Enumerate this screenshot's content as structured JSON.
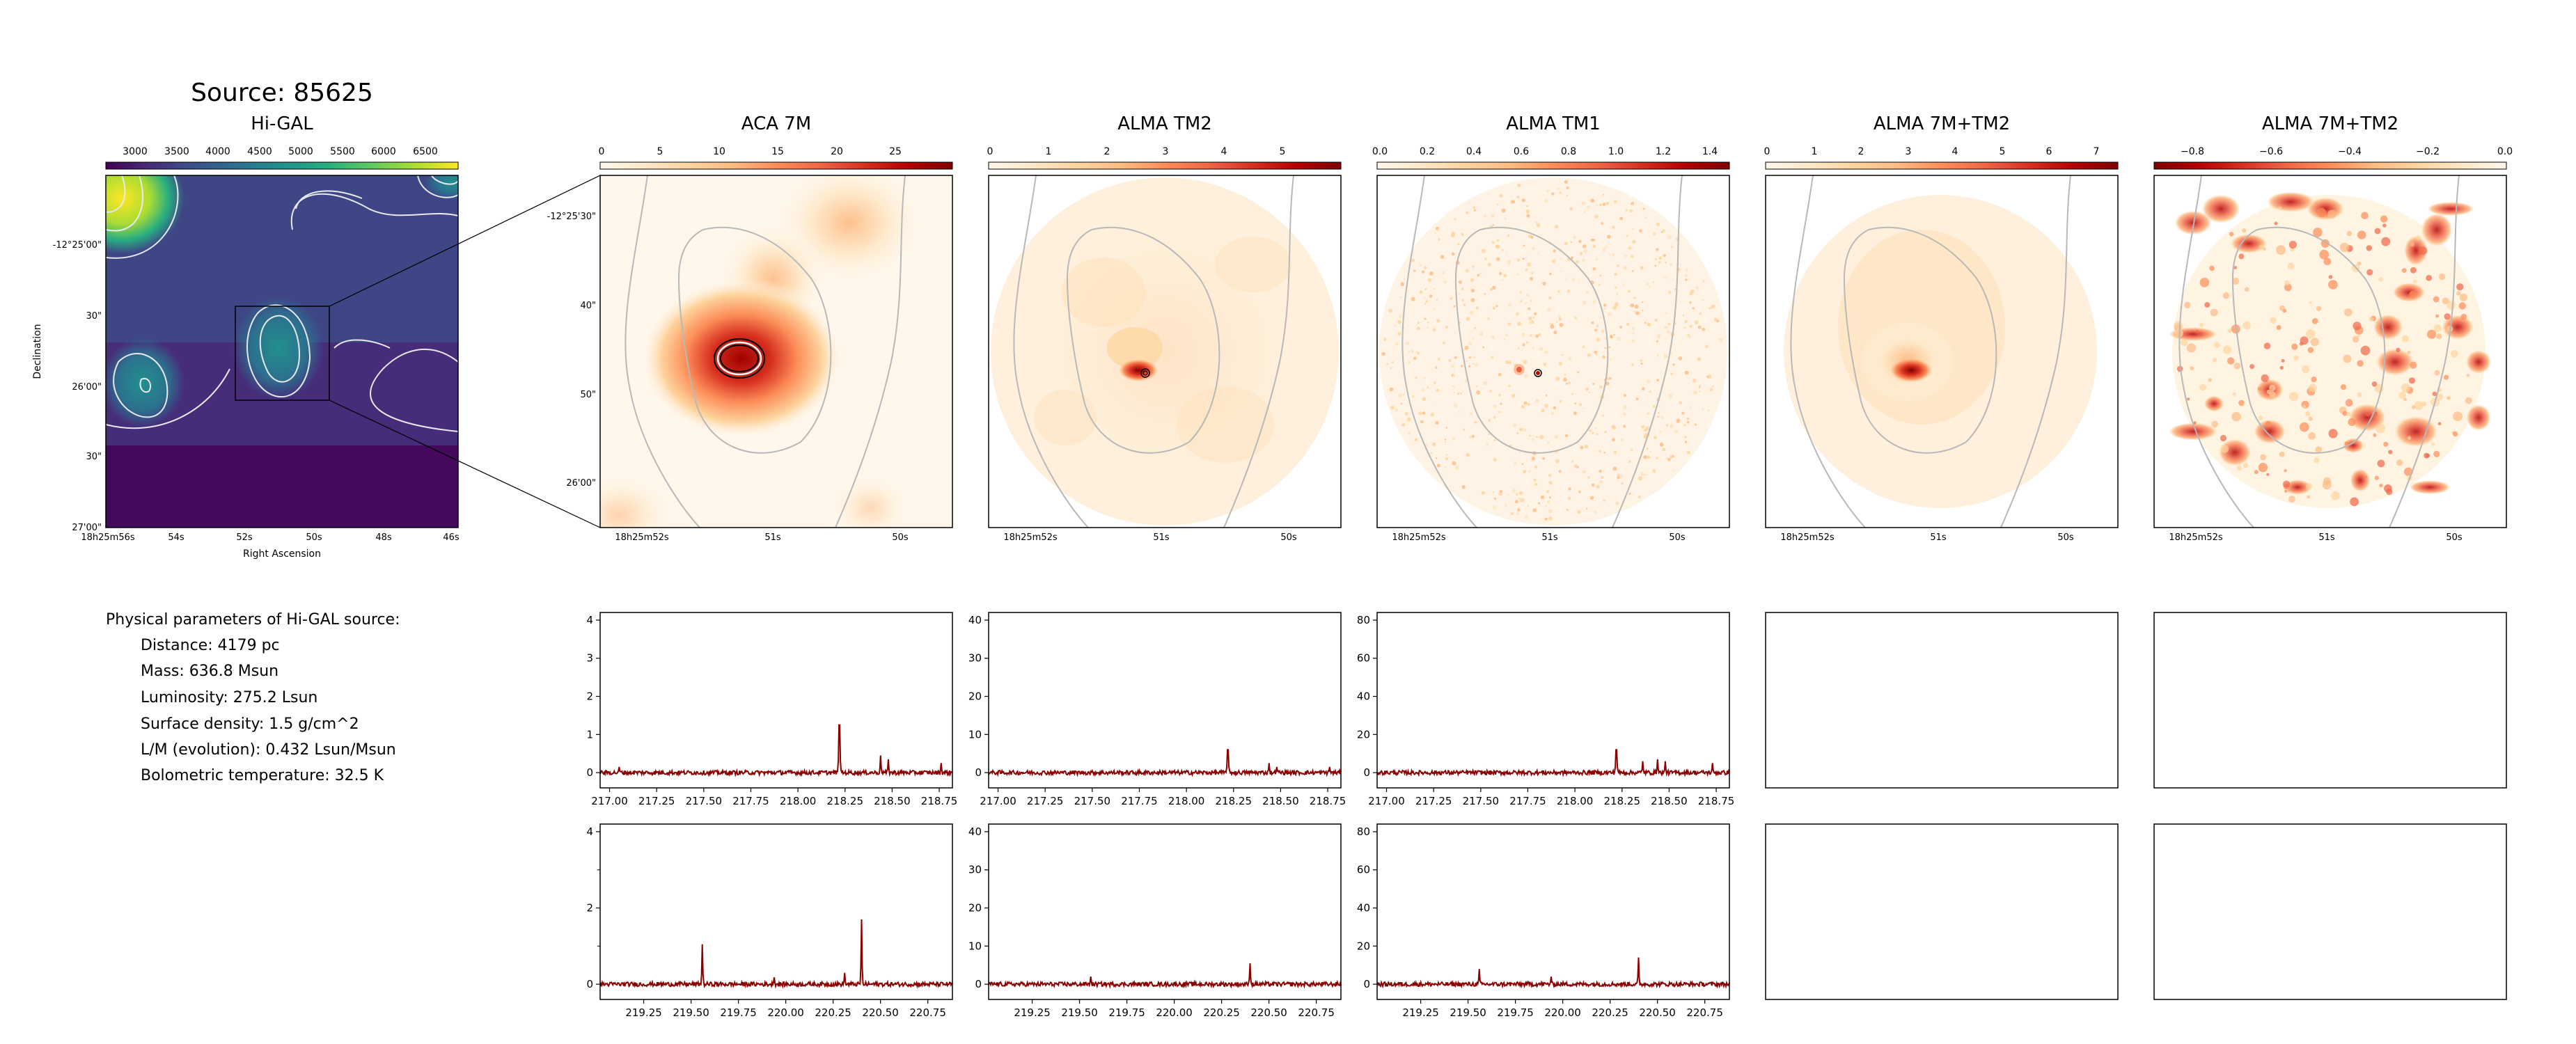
{
  "title": "Source: 85625",
  "colors": {
    "viridis": [
      "#440154",
      "#472c7a",
      "#3b518b",
      "#2c718e",
      "#21908d",
      "#27ad81",
      "#5cc863",
      "#aadc32",
      "#fde725"
    ],
    "orrd": [
      "#fff7ec",
      "#fee8c8",
      "#fdd49e",
      "#fdbb84",
      "#fc8d59",
      "#ef6548",
      "#d7301f",
      "#b30000",
      "#7f0000"
    ],
    "orrd_r": [
      "#7f0000",
      "#b30000",
      "#d7301f",
      "#ef6548",
      "#fc8d59",
      "#fdbb84",
      "#fdd49e",
      "#fee8c8",
      "#fff7ec"
    ],
    "spectrum": "#8b0000",
    "contour_hg": "#e8e8f0",
    "contour_grey": "#b8b8b8"
  },
  "panels": [
    {
      "id": "higal",
      "title": "Hi-GAL",
      "ticks": [
        "3000",
        "3500",
        "4000",
        "4500",
        "5000",
        "5500",
        "6000",
        "6500"
      ],
      "ylabel": "Declination",
      "xlabel": "Right Ascension",
      "xticklabels": [
        "18h25m56s",
        "54s",
        "52s",
        "50s",
        "48s",
        "46s"
      ],
      "yticklabels": [
        "-12°25'00\"",
        "30\"",
        "26'00\"",
        "30\"",
        "27'00\""
      ]
    },
    {
      "id": "aca7m",
      "title": "ACA 7M",
      "ticks": [
        "0",
        "5",
        "10",
        "15",
        "20",
        "25"
      ],
      "xticklabels": [
        "18h25m52s",
        "51s",
        "50s"
      ],
      "yticklabels": [
        "-12°25'30\"",
        "40\"",
        "50\"",
        "26'00\""
      ]
    },
    {
      "id": "tm2",
      "title": "ALMA TM2",
      "ticks": [
        "0",
        "1",
        "2",
        "3",
        "4",
        "5"
      ],
      "xticklabels": [
        "18h25m52s",
        "51s",
        "50s"
      ]
    },
    {
      "id": "tm1",
      "title": "ALMA TM1",
      "ticks": [
        "0.0",
        "0.2",
        "0.4",
        "0.6",
        "0.8",
        "1.0",
        "1.2",
        "1.4"
      ],
      "xticklabels": [
        "18h25m52s",
        "51s",
        "50s"
      ]
    },
    {
      "id": "comb",
      "title": "ALMA 7M+TM2",
      "ticks": [
        "0",
        "1",
        "2",
        "3",
        "4",
        "5",
        "6",
        "7"
      ],
      "xticklabels": [
        "18h25m52s",
        "51s",
        "50s"
      ]
    },
    {
      "id": "resid",
      "title": "ALMA 7M+TM2",
      "ticks": [
        "−0.8",
        "−0.6",
        "−0.4",
        "−0.2",
        "0.0"
      ],
      "xticklabels": [
        "18h25m52s",
        "51s",
        "50s"
      ]
    }
  ],
  "params": {
    "heading": "Physical parameters of Hi-GAL source:",
    "lines": [
      "Distance: 4179 pc",
      "Mass: 636.8 Msun",
      "Luminosity: 275.2 Lsun",
      "Surface density: 1.5 g/cm^2",
      "L/M (evolution): 0.432 Lsun/Msun",
      "Bolometric temperature: 32.5 K"
    ]
  },
  "chart_data": [
    {
      "type": "line",
      "panel": "aca7m-spw-a",
      "x_range": [
        216.95,
        218.82
      ],
      "xticks": [
        "217.00",
        "217.25",
        "217.50",
        "217.75",
        "218.00",
        "218.25",
        "218.50",
        "218.75"
      ],
      "ylim": [
        -0.4,
        4.2
      ],
      "yticks": [
        "0",
        "1",
        "2",
        "3",
        "4"
      ],
      "peaks": [
        {
          "x": 218.22,
          "y": 1.25
        },
        {
          "x": 218.44,
          "y": 0.45
        },
        {
          "x": 218.48,
          "y": 0.35
        },
        {
          "x": 218.76,
          "y": 0.25
        },
        {
          "x": 217.05,
          "y": 0.15
        }
      ]
    },
    {
      "type": "line",
      "panel": "tm2-spw-a",
      "x_range": [
        216.95,
        218.82
      ],
      "xticks": [
        "217.00",
        "217.25",
        "217.50",
        "217.75",
        "218.00",
        "218.25",
        "218.50",
        "218.75"
      ],
      "ylim": [
        -4,
        42
      ],
      "yticks": [
        "0",
        "10",
        "20",
        "30",
        "40"
      ],
      "peaks": [
        {
          "x": 218.22,
          "y": 6
        },
        {
          "x": 218.44,
          "y": 2.5
        },
        {
          "x": 218.48,
          "y": 1.5
        },
        {
          "x": 218.76,
          "y": 1.5
        }
      ]
    },
    {
      "type": "line",
      "panel": "tm1-spw-a",
      "x_range": [
        216.95,
        218.82
      ],
      "xticks": [
        "217.00",
        "217.25",
        "217.50",
        "217.75",
        "218.00",
        "218.25",
        "218.50",
        "218.75"
      ],
      "ylim": [
        -8,
        84
      ],
      "yticks": [
        "0",
        "20",
        "40",
        "60",
        "80"
      ],
      "peaks": [
        {
          "x": 218.22,
          "y": 12
        },
        {
          "x": 218.36,
          "y": 6
        },
        {
          "x": 218.44,
          "y": 7
        },
        {
          "x": 218.48,
          "y": 6
        },
        {
          "x": 218.73,
          "y": 5
        }
      ]
    },
    {
      "type": "line",
      "panel": "aca7m-spw-b",
      "x_range": [
        219.02,
        220.88
      ],
      "xticks": [
        "219.25",
        "219.50",
        "219.75",
        "220.00",
        "220.25",
        "220.50",
        "220.75"
      ],
      "ylim": [
        -0.4,
        4.2
      ],
      "yticks": [
        "0",
        "2",
        "4"
      ],
      "minor_yticks": [
        "1",
        "3"
      ],
      "peaks": [
        {
          "x": 219.56,
          "y": 1.05
        },
        {
          "x": 219.94,
          "y": 0.18
        },
        {
          "x": 220.31,
          "y": 0.3
        },
        {
          "x": 220.4,
          "y": 1.7
        }
      ]
    },
    {
      "type": "line",
      "panel": "tm2-spw-b",
      "x_range": [
        219.02,
        220.88
      ],
      "xticks": [
        "219.25",
        "219.50",
        "219.75",
        "220.00",
        "220.25",
        "220.50",
        "220.75"
      ],
      "ylim": [
        -4,
        42
      ],
      "yticks": [
        "0",
        "10",
        "20",
        "30",
        "40"
      ],
      "peaks": [
        {
          "x": 219.56,
          "y": 2
        },
        {
          "x": 220.4,
          "y": 5.5
        }
      ]
    },
    {
      "type": "line",
      "panel": "tm1-spw-b",
      "x_range": [
        219.02,
        220.88
      ],
      "xticks": [
        "219.25",
        "219.50",
        "219.75",
        "220.00",
        "220.25",
        "220.50",
        "220.75"
      ],
      "ylim": [
        -8,
        84
      ],
      "yticks": [
        "0",
        "20",
        "40",
        "60",
        "80"
      ],
      "peaks": [
        {
          "x": 219.56,
          "y": 8
        },
        {
          "x": 219.94,
          "y": 4
        },
        {
          "x": 220.4,
          "y": 14
        }
      ]
    }
  ]
}
